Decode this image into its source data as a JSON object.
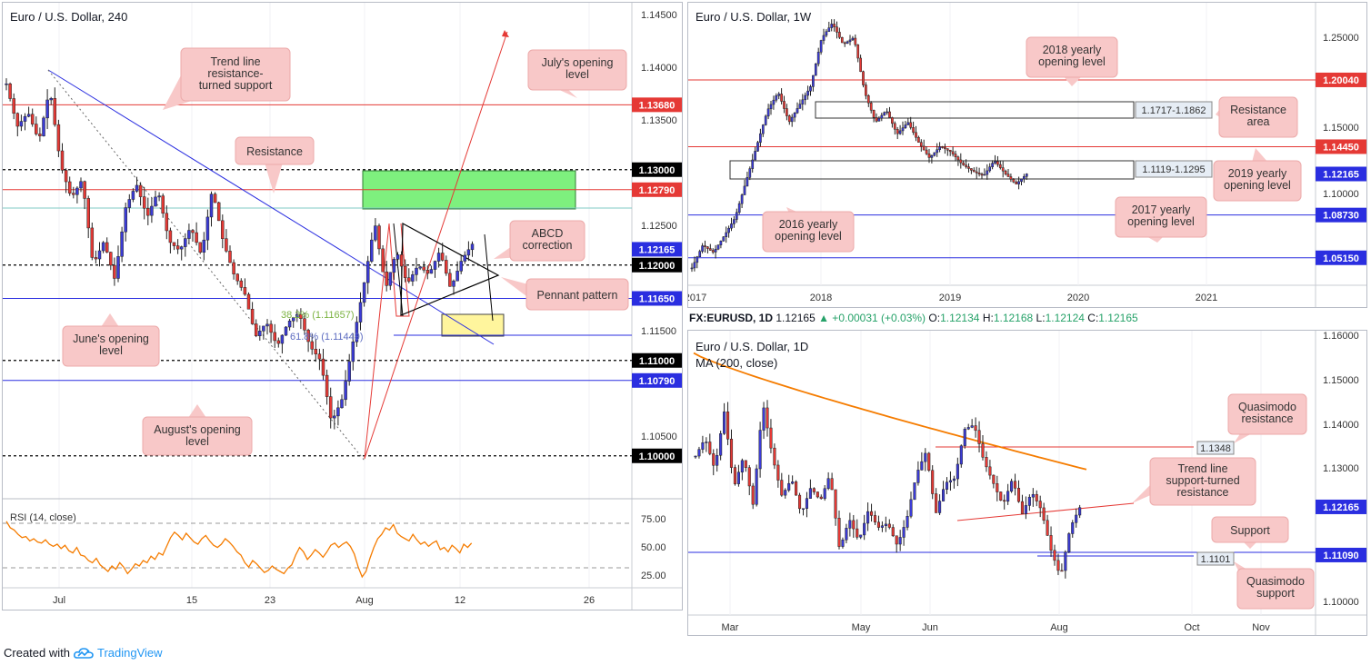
{
  "footer": {
    "created_with": "Created with",
    "brand": "TradingView",
    "brand_icon": "tradingview-cloud-icon"
  },
  "daily_header": {
    "symbol": "FX:EURUSD, 1D",
    "last": "1.12165",
    "change": "▲ +0.00031 (+0.03%)",
    "o_label": "O:",
    "o": "1.12134",
    "h_label": "H:",
    "h": "1.12168",
    "l_label": "L:",
    "l": "1.12124",
    "c_label": "C:",
    "c": "1.12165"
  },
  "chart_data": [
    {
      "id": "h4",
      "type": "candlestick",
      "title": "Euro / U.S. Dollar, 240",
      "y_ticks": [
        "1.14500",
        "1.14000",
        "1.13500",
        "1.12500",
        "1.11500",
        "1.10500"
      ],
      "x_ticks": [
        "Jul",
        "15",
        "23",
        "Aug",
        "12",
        "26"
      ],
      "ylim": [
        1.0955,
        1.1475
      ],
      "price_labels": [
        {
          "value": 1.1368,
          "text": "1.13680",
          "color": "#e53935",
          "line": "solid"
        },
        {
          "value": 1.13,
          "text": "1.13000",
          "color": "#000000",
          "line": "dotted"
        },
        {
          "value": 1.1279,
          "text": "1.12790",
          "color": "#e53935",
          "line": "solid"
        },
        {
          "value": 1.12165,
          "text": "1.12165",
          "color": "#2a2ee0",
          "line": "none"
        },
        {
          "value": 1.12,
          "text": "1.12000",
          "color": "#000000",
          "line": "dotted"
        },
        {
          "value": 1.1165,
          "text": "1.11650",
          "color": "#2a2ee0",
          "line": "solid"
        },
        {
          "value": 1.11,
          "text": "1.11000",
          "color": "#000000",
          "line": "dotted"
        },
        {
          "value": 1.1079,
          "text": "1.10790",
          "color": "#2a2ee0",
          "line": "solid"
        },
        {
          "value": 1.1,
          "text": "1.10000",
          "color": "#000000",
          "line": "dotted"
        }
      ],
      "fib_labels": [
        "38.2% (1.11657)",
        "61.8% (1.11449)"
      ],
      "annotations": [
        "Trend line resistance- turned support",
        "July's opening level",
        "Resistance",
        "ABCD correction",
        "Pennant pattern",
        "June's opening level",
        "August's opening level"
      ],
      "rsi": {
        "label": "RSI (14, close)",
        "ticks": [
          "75.00",
          "50.00",
          "25.00"
        ],
        "ylim": [
          15,
          85
        ],
        "values": [
          76,
          70,
          68,
          64,
          61,
          62,
          58,
          60,
          57,
          56,
          59,
          55,
          53,
          55,
          51,
          54,
          49,
          47,
          52,
          45,
          44,
          40,
          38,
          42,
          36,
          33,
          30,
          35,
          32,
          38,
          34,
          28,
          32,
          37,
          35,
          40,
          38,
          44,
          41,
          47,
          45,
          53,
          61,
          66,
          63,
          59,
          65,
          61,
          57,
          55,
          60,
          63,
          58,
          54,
          52,
          55,
          60,
          57,
          53,
          48,
          45,
          38,
          34,
          40,
          37,
          33,
          29,
          31,
          35,
          32,
          30,
          28,
          33,
          36,
          45,
          52,
          48,
          41,
          45,
          50,
          47,
          43,
          48,
          54,
          56,
          52,
          55,
          57,
          53,
          46,
          34,
          25,
          30,
          42,
          52,
          60,
          64,
          70,
          68,
          73,
          65,
          62,
          60,
          58,
          64,
          59,
          55,
          57,
          53,
          56,
          58,
          50,
          52,
          48,
          54,
          51,
          47,
          55,
          52,
          56
        ]
      }
    },
    {
      "id": "weekly",
      "type": "candlestick",
      "title": "Euro / U.S. Dollar, 1W",
      "y_ticks": [
        "1.25000",
        "1.15000",
        "1.10000"
      ],
      "x_ticks": [
        "2017",
        "2018",
        "2019",
        "2020",
        "2021"
      ],
      "ylim": [
        1.0285,
        1.265
      ],
      "price_labels": [
        {
          "value": 1.2004,
          "text": "1.20040",
          "color": "#e53935"
        },
        {
          "value": 1.1445,
          "text": "1.14450",
          "color": "#e53935"
        },
        {
          "value": 1.12165,
          "text": "1.12165",
          "color": "#2a2ee0"
        },
        {
          "value": 1.0873,
          "text": "1.08730",
          "color": "#2a2ee0"
        },
        {
          "value": 1.0515,
          "text": "1.05150",
          "color": "#2a2ee0"
        }
      ],
      "zones": [
        "1.1717-1.1862",
        "1.1119-1.1295"
      ],
      "annotations": [
        "2018 yearly opening level",
        "Resistance area",
        "2019 yearly opening level",
        "2017 yearly opening level",
        "2016 yearly opening level"
      ]
    },
    {
      "id": "daily",
      "type": "candlestick",
      "title": "Euro / U.S. Dollar, 1D",
      "ma_label": "MA (200, close)",
      "y_ticks": [
        "1.16000",
        "1.15000",
        "1.14000",
        "1.13000",
        "1.12000",
        "1.10000"
      ],
      "x_ticks": [
        "Mar",
        "May",
        "Jun",
        "Aug",
        "Oct",
        "Nov"
      ],
      "ylim": [
        1.0975,
        1.161
      ],
      "price_labels": [
        {
          "value": 1.12165,
          "text": "1.12165",
          "color": "#2a2ee0"
        },
        {
          "value": 1.1109,
          "text": "1.11090",
          "color": "#2a2ee0"
        }
      ],
      "level_labels": [
        "1.1348",
        "1.1101"
      ],
      "annotations": [
        "Quasimodo resistance",
        "Trend line support-turned resistance",
        "Support",
        "Quasimodo support"
      ]
    }
  ]
}
